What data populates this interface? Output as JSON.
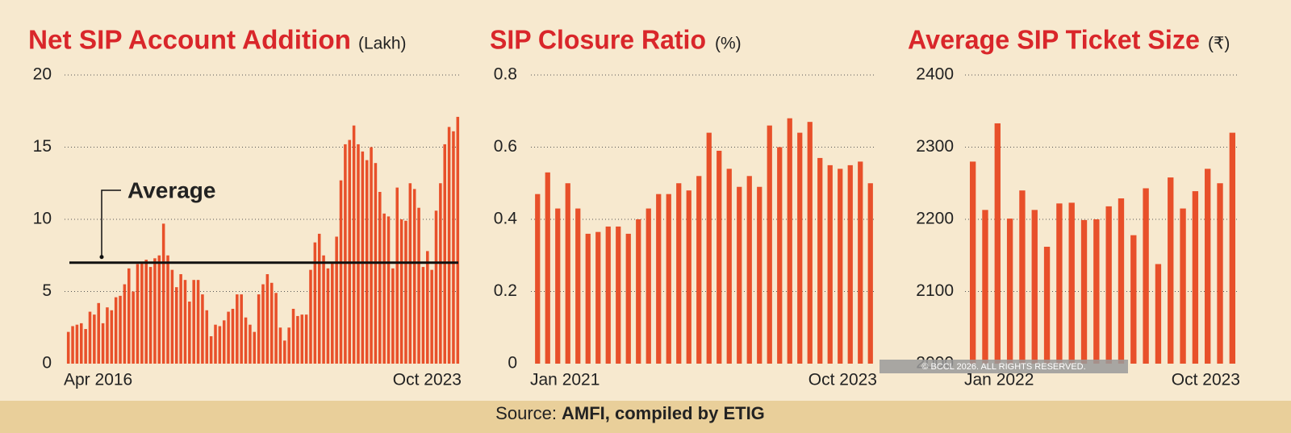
{
  "chart_data": [
    {
      "type": "bar",
      "title": "Net SIP Account Addition",
      "unit": "(Lakh)",
      "color": "#e8502a",
      "categories": [
        "Apr 2016",
        null,
        null,
        null,
        null,
        null,
        null,
        null,
        null,
        null,
        null,
        null,
        null,
        null,
        null,
        null,
        null,
        null,
        null,
        null,
        null,
        null,
        null,
        null,
        null,
        null,
        null,
        null,
        null,
        null,
        null,
        null,
        null,
        null,
        null,
        null,
        null,
        null,
        null,
        null,
        null,
        null,
        null,
        null,
        null,
        null,
        null,
        null,
        null,
        null,
        null,
        null,
        null,
        null,
        null,
        null,
        null,
        null,
        null,
        null,
        null,
        null,
        null,
        null,
        null,
        null,
        null,
        null,
        null,
        null,
        null,
        null,
        null,
        null,
        null,
        null,
        null,
        null,
        null,
        null,
        null,
        null,
        null,
        null,
        null,
        null,
        null,
        null,
        null,
        null,
        "Oct 2023"
      ],
      "values": [
        2.2,
        2.6,
        2.7,
        2.8,
        2.4,
        3.6,
        3.4,
        4.2,
        2.8,
        3.9,
        3.7,
        4.6,
        4.7,
        5.5,
        6.6,
        5.0,
        6.9,
        7.0,
        7.2,
        6.7,
        7.3,
        7.5,
        9.7,
        7.5,
        6.5,
        5.3,
        6.2,
        5.8,
        4.3,
        5.8,
        5.8,
        4.8,
        3.7,
        1.9,
        2.7,
        2.6,
        3.0,
        3.6,
        3.8,
        4.8,
        4.8,
        3.2,
        2.7,
        2.2,
        4.8,
        5.5,
        6.2,
        5.6,
        4.9,
        2.5,
        1.6,
        2.5,
        3.8,
        3.3,
        3.4,
        3.4,
        6.5,
        8.4,
        9.0,
        7.5,
        6.6,
        7.0,
        8.8,
        12.7,
        15.2,
        15.5,
        16.5,
        15.2,
        14.7,
        14.1,
        15.0,
        13.9,
        11.9,
        10.4,
        10.2,
        6.6,
        12.2,
        10.0,
        9.9,
        12.5,
        12.1,
        10.8,
        6.7,
        7.8,
        6.5,
        10.6,
        12.5,
        15.2,
        16.4,
        16.1,
        17.1
      ],
      "ylim": [
        0,
        20
      ],
      "yticks": [
        0,
        5,
        10,
        15,
        20
      ],
      "grid": true,
      "average": {
        "value": 7,
        "label": "Average"
      }
    },
    {
      "type": "bar",
      "title": "SIP Closure Ratio",
      "unit": "(%)",
      "color": "#e8502a",
      "categories": [
        "Jan 2021",
        null,
        null,
        null,
        null,
        null,
        null,
        null,
        null,
        null,
        null,
        null,
        null,
        null,
        null,
        null,
        null,
        null,
        null,
        null,
        null,
        null,
        null,
        null,
        null,
        null,
        null,
        null,
        null,
        null,
        null,
        null,
        null,
        "Oct 2023"
      ],
      "values": [
        0.47,
        0.53,
        0.43,
        0.5,
        0.43,
        0.36,
        0.365,
        0.38,
        0.38,
        0.36,
        0.4,
        0.43,
        0.47,
        0.47,
        0.5,
        0.48,
        0.52,
        0.64,
        0.59,
        0.54,
        0.49,
        0.52,
        0.49,
        0.66,
        0.6,
        0.68,
        0.64,
        0.67,
        0.57,
        0.55,
        0.54,
        0.55,
        0.56,
        0.5
      ],
      "ylim": [
        0,
        0.8
      ],
      "yticks": [
        0,
        0.2,
        0.4,
        0.6,
        0.8
      ],
      "grid": true
    },
    {
      "type": "bar",
      "title": "Average SIP Ticket Size",
      "unit": "(₹)",
      "color": "#e8502a",
      "categories": [
        "Jan 2022",
        null,
        null,
        null,
        null,
        null,
        null,
        null,
        null,
        null,
        null,
        null,
        null,
        null,
        null,
        null,
        null,
        null,
        null,
        null,
        null,
        "Oct 2023"
      ],
      "values": [
        2280,
        2213,
        2333,
        2201,
        2240,
        2213,
        2162,
        2222,
        2223,
        2199,
        2200,
        2218,
        2229,
        2178,
        2243,
        2138,
        2258,
        2215,
        2239,
        2270,
        2250,
        2320
      ],
      "ylim": [
        2000,
        2400
      ],
      "yticks": [
        2000,
        2100,
        2200,
        2300,
        2400
      ],
      "grid": true
    }
  ],
  "source": {
    "label": "Source:",
    "text": "AMFI, compiled by ETIG"
  },
  "watermark": "© BCCL 2026. ALL RIGHTS RESERVED."
}
